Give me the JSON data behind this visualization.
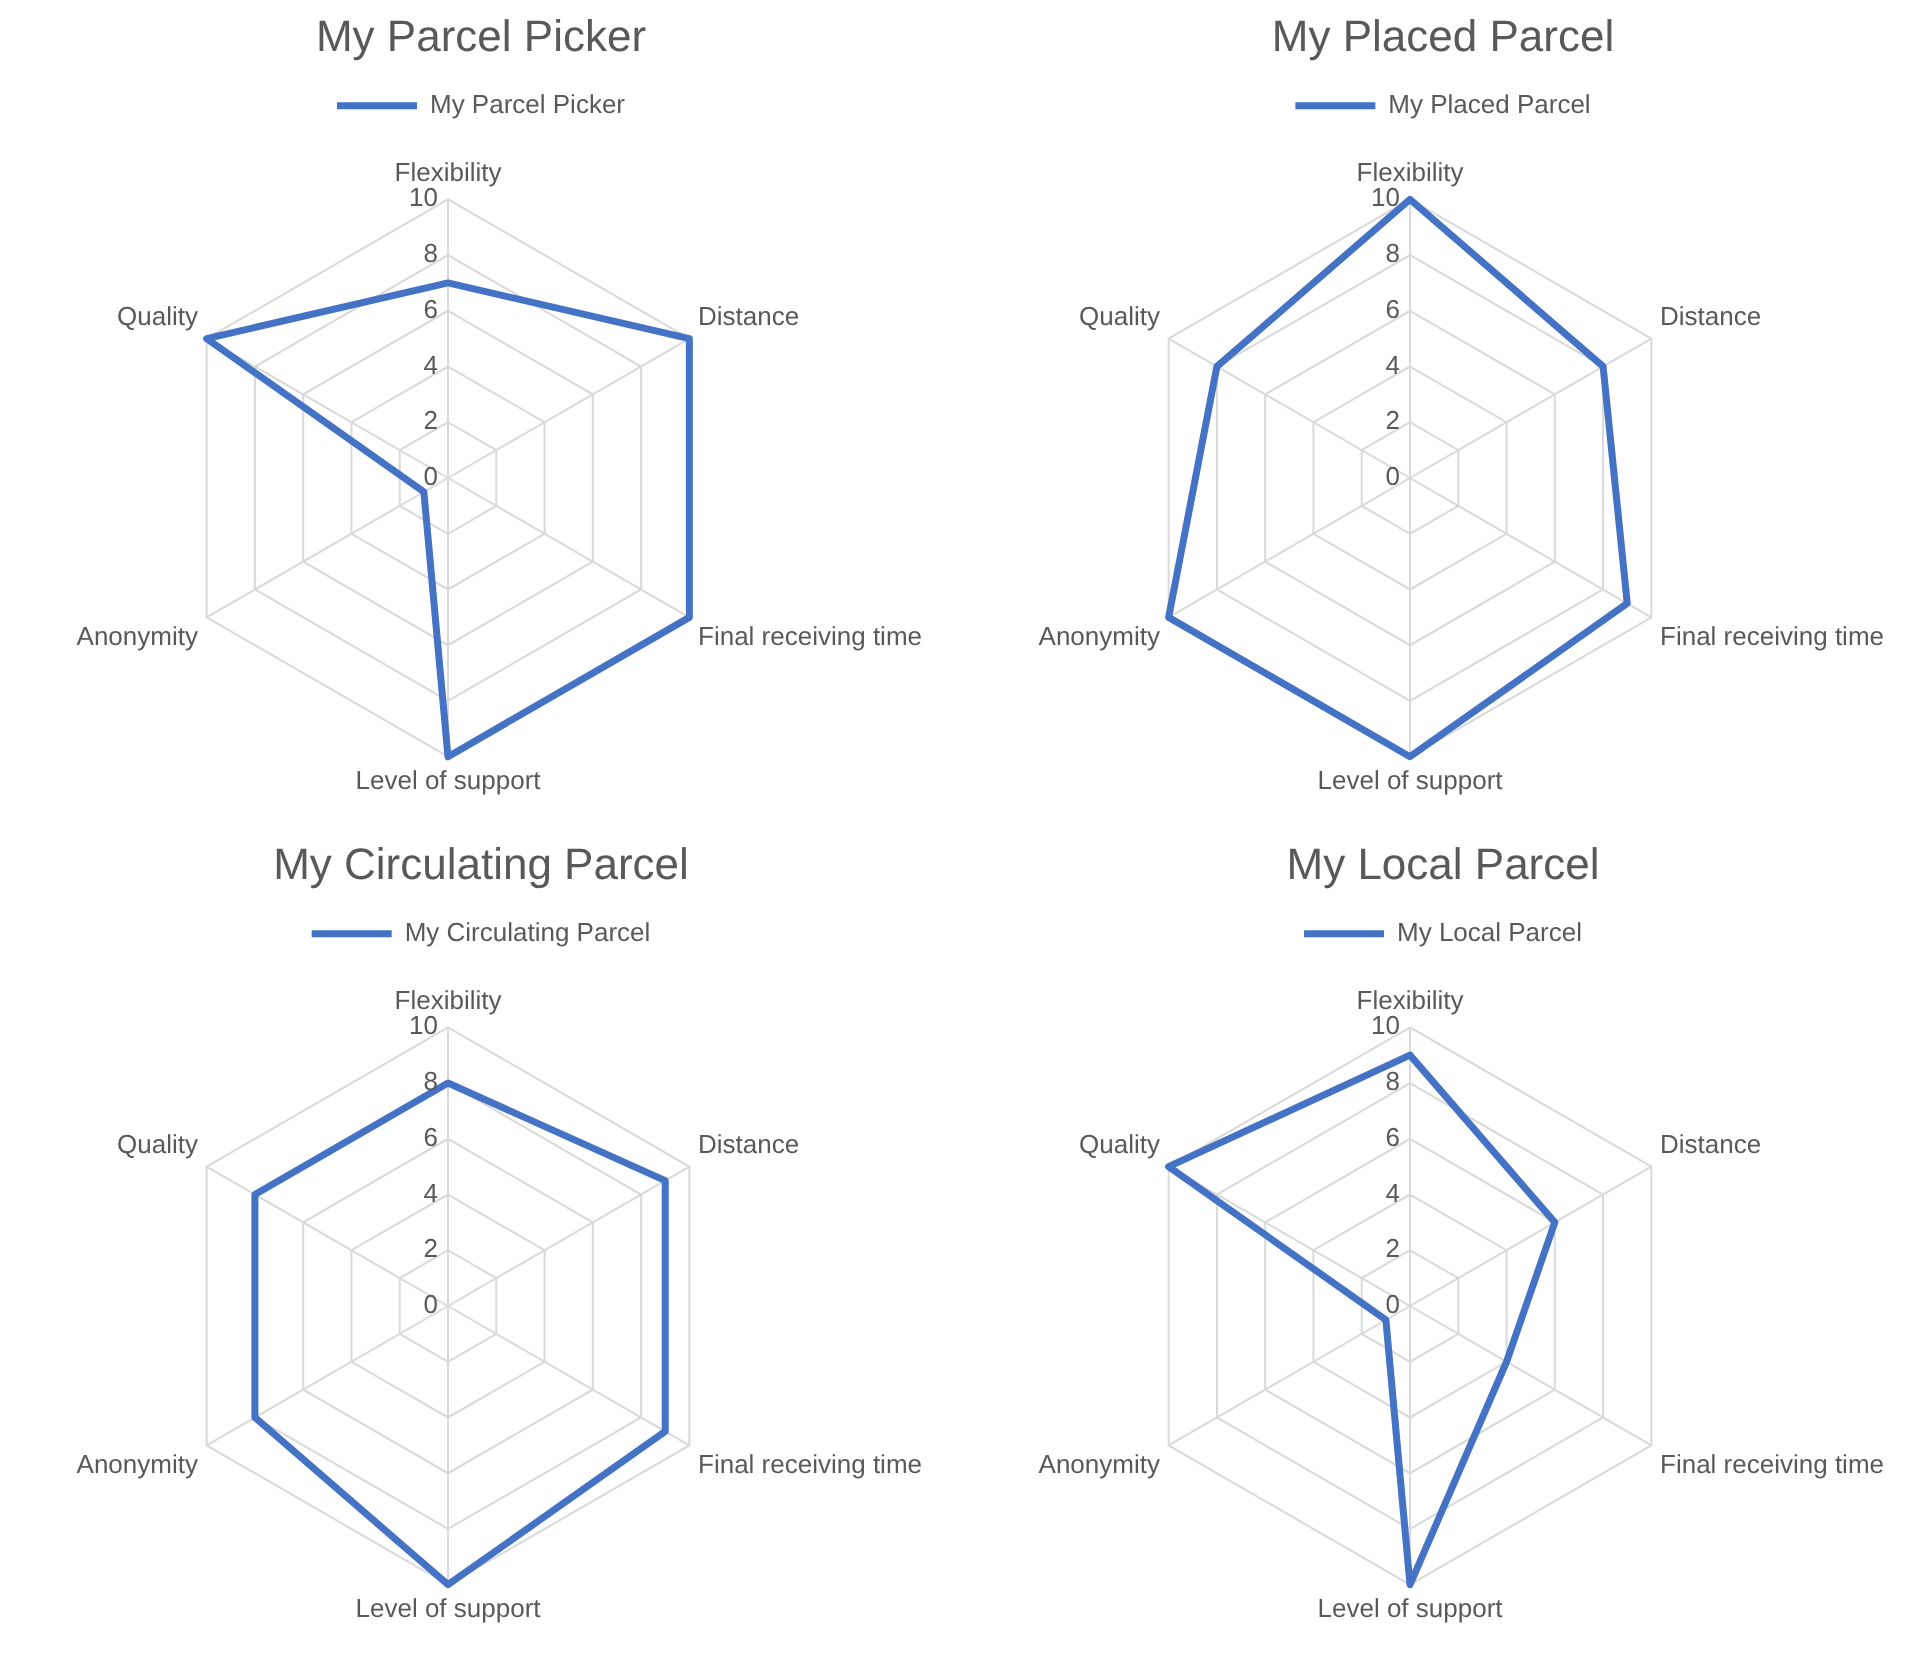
{
  "chart_data": [
    {
      "type": "radar",
      "title": "My Parcel Picker",
      "categories": [
        "Flexibility",
        "Distance",
        "Final receiving time",
        "Level of support",
        "Anonymity",
        "Quality"
      ],
      "series": [
        {
          "name": "My Parcel Picker",
          "color": "#4472c4",
          "values": [
            7,
            10,
            10,
            10,
            1,
            10
          ]
        }
      ],
      "ylim": [
        0,
        10
      ],
      "yticks": [
        0,
        2,
        4,
        6,
        8,
        10
      ],
      "grid": true,
      "legend": "top",
      "marker": "none"
    },
    {
      "type": "radar",
      "title": "My Placed Parcel",
      "categories": [
        "Flexibility",
        "Distance",
        "Final receiving time",
        "Level of support",
        "Anonymity",
        "Quality"
      ],
      "series": [
        {
          "name": "My Placed Parcel",
          "color": "#4472c4",
          "values": [
            10,
            8,
            9,
            10,
            10,
            8
          ]
        }
      ],
      "ylim": [
        0,
        10
      ],
      "yticks": [
        0,
        2,
        4,
        6,
        8,
        10
      ],
      "grid": true,
      "legend": "top",
      "marker": "none"
    },
    {
      "type": "radar",
      "title": "My Circulating Parcel",
      "categories": [
        "Flexibility",
        "Distance",
        "Final receiving time",
        "Level of support",
        "Anonymity",
        "Quality"
      ],
      "series": [
        {
          "name": "My Circulating Parcel",
          "color": "#4472c4",
          "values": [
            8,
            9,
            9,
            10,
            8,
            8
          ]
        }
      ],
      "ylim": [
        0,
        10
      ],
      "yticks": [
        0,
        2,
        4,
        6,
        8,
        10
      ],
      "grid": true,
      "legend": "top",
      "marker": "none"
    },
    {
      "type": "radar",
      "title": "My Local Parcel",
      "categories": [
        "Flexibility",
        "Distance",
        "Final receiving time",
        "Level of support",
        "Anonymity",
        "Quality"
      ],
      "series": [
        {
          "name": "My Local Parcel",
          "color": "#4472c4",
          "values": [
            9,
            6,
            4,
            10,
            1,
            10
          ]
        }
      ],
      "ylim": [
        0,
        10
      ],
      "yticks": [
        0,
        2,
        4,
        6,
        8,
        10
      ],
      "grid": true,
      "legend": "top",
      "marker": "none"
    }
  ]
}
